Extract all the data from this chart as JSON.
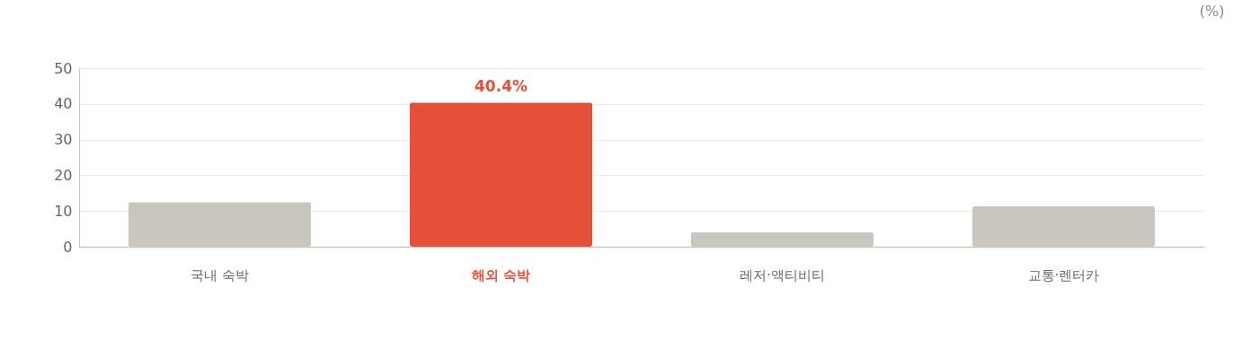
{
  "chart_data": {
    "type": "bar",
    "ylabel": "(%)",
    "categories": [
      "국내 숙박",
      "해외 숙박",
      "레저·액티비티",
      "교통·렌터카"
    ],
    "values": [
      12.5,
      40.4,
      4,
      11.3
    ],
    "colors": [
      "#c9c6bf",
      "#e5503a",
      "#c9c6bf",
      "#c9c6bf"
    ],
    "value_labels": [
      null,
      "40.4%",
      null,
      null
    ],
    "ylim": [
      0,
      50
    ],
    "yticks": [
      0,
      10,
      20,
      30,
      40,
      50
    ],
    "grid": "y"
  }
}
